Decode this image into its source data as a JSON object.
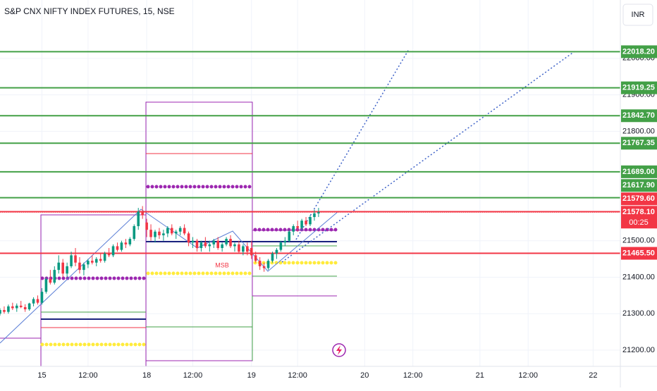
{
  "chart_data": {
    "type": "candlestick",
    "title": "S&P CNX NIFTY INDEX FUTURES, 15, NSE",
    "currency": "INR",
    "annotation": "MSB",
    "up_color": "#089981",
    "down_color": "#f23645",
    "x_start": -10,
    "xlim": [
      -10,
      138
    ],
    "ylim": [
      21155.6,
      22160
    ],
    "xticks": [
      {
        "value": 0,
        "label": "15"
      },
      {
        "value": 11,
        "label": "12:00"
      },
      {
        "value": 25,
        "label": "18"
      },
      {
        "value": 36,
        "label": "12:00"
      },
      {
        "value": 50,
        "label": "19"
      },
      {
        "value": 61,
        "label": "12:00"
      },
      {
        "value": 77,
        "label": "20"
      },
      {
        "value": 88.5,
        "label": "12:00"
      },
      {
        "value": 104.5,
        "label": "21"
      },
      {
        "value": 116,
        "label": "12:00"
      },
      {
        "value": 131.5,
        "label": "22"
      }
    ],
    "yticks": [
      {
        "value": 21200,
        "label": "21200.00"
      },
      {
        "value": 21300,
        "label": "21300.00"
      },
      {
        "value": 21400,
        "label": "21400.00"
      },
      {
        "value": 21500,
        "label": "21500.00"
      },
      {
        "value": 21800,
        "label": "21800.00"
      },
      {
        "value": 21900,
        "label": "21900.00"
      },
      {
        "value": 22000,
        "label": "22000.00"
      }
    ],
    "grid": true,
    "levels": [
      {
        "value": 22018.2,
        "label": "22018.20",
        "color": "#43a047"
      },
      {
        "value": 21919.25,
        "label": "21919.25",
        "color": "#43a047"
      },
      {
        "value": 21842.7,
        "label": "21842.70",
        "color": "#43a047"
      },
      {
        "value": 21767.35,
        "label": "21767.35",
        "color": "#43a047"
      },
      {
        "value": 21689,
        "label": "21689.00",
        "color": "#43a047"
      },
      {
        "value": 21617.9,
        "label": "21617.90",
        "color": "#43a047"
      },
      {
        "value": 21579.6,
        "label": "21579.60",
        "color": "#f23645"
      },
      {
        "value": 21465.5,
        "label": "21465.50",
        "color": "#f23645"
      }
    ],
    "last": {
      "value": 21578.1,
      "label": "21578.10",
      "countdown": "00:25",
      "color": "#f23645"
    },
    "candles": [
      [
        21300,
        21315,
        21295,
        21310
      ],
      [
        21310,
        21320,
        21300,
        21305
      ],
      [
        21305,
        21325,
        21300,
        21320
      ],
      [
        21320,
        21330,
        21310,
        21315
      ],
      [
        21315,
        21328,
        21305,
        21322
      ],
      [
        21322,
        21335,
        21315,
        21318
      ],
      [
        21318,
        21326,
        21305,
        21312
      ],
      [
        21312,
        21330,
        21308,
        21328
      ],
      [
        21328,
        21345,
        21320,
        21340
      ],
      [
        21340,
        21350,
        21325,
        21330
      ],
      [
        21330,
        21370,
        21325,
        21360
      ],
      [
        21360,
        21400,
        21355,
        21395
      ],
      [
        21395,
        21420,
        21380,
        21385
      ],
      [
        21385,
        21430,
        21380,
        21420
      ],
      [
        21420,
        21460,
        21410,
        21440
      ],
      [
        21440,
        21450,
        21400,
        21410
      ],
      [
        21410,
        21440,
        21400,
        21430
      ],
      [
        21430,
        21470,
        21425,
        21460
      ],
      [
        21460,
        21480,
        21430,
        21440
      ],
      [
        21440,
        21455,
        21410,
        21420
      ],
      [
        21420,
        21440,
        21405,
        21435
      ],
      [
        21435,
        21450,
        21425,
        21445
      ],
      [
        21445,
        21460,
        21435,
        21440
      ],
      [
        21440,
        21455,
        21430,
        21450
      ],
      [
        21450,
        21465,
        21440,
        21445
      ],
      [
        21445,
        21470,
        21440,
        21465
      ],
      [
        21465,
        21480,
        21455,
        21460
      ],
      [
        21460,
        21490,
        21455,
        21485
      ],
      [
        21485,
        21495,
        21470,
        21475
      ],
      [
        21475,
        21500,
        21470,
        21495
      ],
      [
        21495,
        21505,
        21480,
        21490
      ],
      [
        21490,
        21510,
        21485,
        21505
      ],
      [
        21505,
        21545,
        21500,
        21540
      ],
      [
        21540,
        21590,
        21530,
        21580
      ],
      [
        21580,
        21595,
        21560,
        21570
      ],
      [
        21550,
        21560,
        21510,
        21530
      ],
      [
        21530,
        21545,
        21500,
        21510
      ],
      [
        21510,
        21530,
        21495,
        21525
      ],
      [
        21525,
        21535,
        21505,
        21515
      ],
      [
        21515,
        21530,
        21500,
        21520
      ],
      [
        21520,
        21540,
        21510,
        21535
      ],
      [
        21535,
        21545,
        21515,
        21520
      ],
      [
        21520,
        21530,
        21505,
        21525
      ],
      [
        21525,
        21540,
        21515,
        21535
      ],
      [
        21535,
        21545,
        21515,
        21520
      ],
      [
        21520,
        21525,
        21485,
        21495
      ],
      [
        21495,
        21510,
        21480,
        21500
      ],
      [
        21500,
        21505,
        21470,
        21480
      ],
      [
        21480,
        21500,
        21470,
        21495
      ],
      [
        21495,
        21510,
        21480,
        21485
      ],
      [
        21485,
        21500,
        21470,
        21490
      ],
      [
        21490,
        21505,
        21480,
        21500
      ],
      [
        21500,
        21510,
        21475,
        21480
      ],
      [
        21480,
        21495,
        21470,
        21490
      ],
      [
        21490,
        21510,
        21485,
        21505
      ],
      [
        21505,
        21515,
        21480,
        21485
      ],
      [
        21485,
        21495,
        21470,
        21490
      ],
      [
        21490,
        21500,
        21465,
        21470
      ],
      [
        21470,
        21490,
        21460,
        21485
      ],
      [
        21485,
        21495,
        21460,
        21470
      ],
      [
        21480,
        21500,
        21450,
        21460
      ],
      [
        21460,
        21470,
        21440,
        21445
      ],
      [
        21445,
        21455,
        21420,
        21430
      ],
      [
        21430,
        21440,
        21415,
        21425
      ],
      [
        21425,
        21450,
        21420,
        21445
      ],
      [
        21445,
        21470,
        21440,
        21465
      ],
      [
        21465,
        21480,
        21450,
        21475
      ],
      [
        21475,
        21500,
        21470,
        21495
      ],
      [
        21495,
        21510,
        21485,
        21500
      ],
      [
        21500,
        21530,
        21495,
        21525
      ],
      [
        21525,
        21545,
        21515,
        21540
      ],
      [
        21540,
        21555,
        21525,
        21535
      ],
      [
        21535,
        21560,
        21530,
        21555
      ],
      [
        21555,
        21565,
        21540,
        21545
      ],
      [
        21545,
        21570,
        21540,
        21565
      ],
      [
        21565,
        21585,
        21555,
        21575
      ],
      [
        21575,
        21590,
        21565,
        21578.1
      ]
    ]
  }
}
